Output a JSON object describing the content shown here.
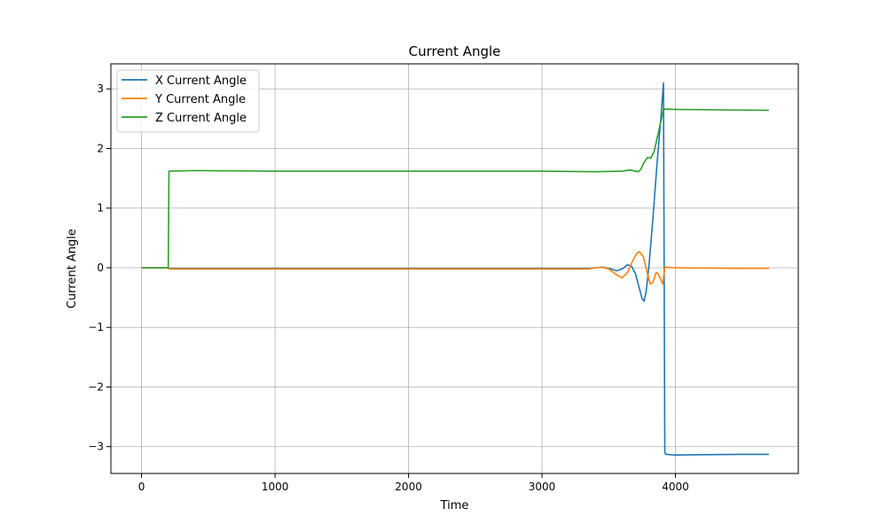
{
  "chart_data": {
    "type": "line",
    "title": "Current Angle",
    "xlabel": "Time",
    "ylabel": "Current Angle",
    "xlim": [
      -230,
      4920
    ],
    "ylim": [
      -3.45,
      3.42
    ],
    "xticks": [
      0,
      1000,
      2000,
      3000,
      4000
    ],
    "yticks": [
      -3,
      -2,
      -1,
      0,
      1,
      2,
      3
    ],
    "grid": true,
    "legend_position": "upper-left",
    "series": [
      {
        "name": "X Current Angle",
        "color": "#1f77b4",
        "points": [
          [
            0,
            0
          ],
          [
            200,
            0
          ],
          [
            205,
            -0.01
          ],
          [
            1000,
            -0.01
          ],
          [
            2000,
            -0.01
          ],
          [
            3000,
            -0.01
          ],
          [
            3350,
            -0.01
          ],
          [
            3400,
            0.0
          ],
          [
            3450,
            0.01
          ],
          [
            3500,
            -0.01
          ],
          [
            3560,
            -0.05
          ],
          [
            3600,
            -0.02
          ],
          [
            3640,
            0.05
          ],
          [
            3670,
            0.03
          ],
          [
            3700,
            -0.1
          ],
          [
            3730,
            -0.35
          ],
          [
            3750,
            -0.52
          ],
          [
            3765,
            -0.56
          ],
          [
            3780,
            -0.4
          ],
          [
            3800,
            0.0
          ],
          [
            3830,
            0.8
          ],
          [
            3860,
            1.7
          ],
          [
            3890,
            2.5
          ],
          [
            3910,
            3.1
          ],
          [
            3920,
            -3.1
          ],
          [
            3930,
            -3.13
          ],
          [
            4000,
            -3.14
          ],
          [
            4200,
            -3.135
          ],
          [
            4500,
            -3.13
          ],
          [
            4700,
            -3.13
          ]
        ]
      },
      {
        "name": "Y Current Angle",
        "color": "#ff7f0e",
        "points": [
          [
            0,
            0
          ],
          [
            200,
            0
          ],
          [
            205,
            -0.02
          ],
          [
            1000,
            -0.02
          ],
          [
            2000,
            -0.02
          ],
          [
            3000,
            -0.02
          ],
          [
            3350,
            -0.02
          ],
          [
            3400,
            0.0
          ],
          [
            3450,
            0.01
          ],
          [
            3500,
            -0.02
          ],
          [
            3560,
            -0.12
          ],
          [
            3600,
            -0.17
          ],
          [
            3640,
            -0.08
          ],
          [
            3680,
            0.12
          ],
          [
            3710,
            0.24
          ],
          [
            3730,
            0.27
          ],
          [
            3760,
            0.18
          ],
          [
            3790,
            -0.1
          ],
          [
            3810,
            -0.27
          ],
          [
            3830,
            -0.25
          ],
          [
            3855,
            -0.08
          ],
          [
            3870,
            -0.1
          ],
          [
            3890,
            -0.2
          ],
          [
            3905,
            -0.27
          ],
          [
            3920,
            0.01
          ],
          [
            4000,
            0.0
          ],
          [
            4500,
            -0.01
          ],
          [
            4700,
            -0.01
          ]
        ]
      },
      {
        "name": "Z Current Angle",
        "color": "#2ca02c",
        "points": [
          [
            0,
            0
          ],
          [
            200,
            0
          ],
          [
            205,
            1.62
          ],
          [
            400,
            1.63
          ],
          [
            1000,
            1.62
          ],
          [
            2000,
            1.62
          ],
          [
            3000,
            1.62
          ],
          [
            3400,
            1.61
          ],
          [
            3600,
            1.62
          ],
          [
            3660,
            1.64
          ],
          [
            3700,
            1.62
          ],
          [
            3720,
            1.61
          ],
          [
            3740,
            1.65
          ],
          [
            3760,
            1.75
          ],
          [
            3790,
            1.85
          ],
          [
            3815,
            1.84
          ],
          [
            3840,
            1.95
          ],
          [
            3870,
            2.25
          ],
          [
            3900,
            2.55
          ],
          [
            3910,
            2.65
          ],
          [
            3920,
            2.66
          ],
          [
            4000,
            2.655
          ],
          [
            4500,
            2.645
          ],
          [
            4700,
            2.64
          ]
        ]
      }
    ]
  }
}
